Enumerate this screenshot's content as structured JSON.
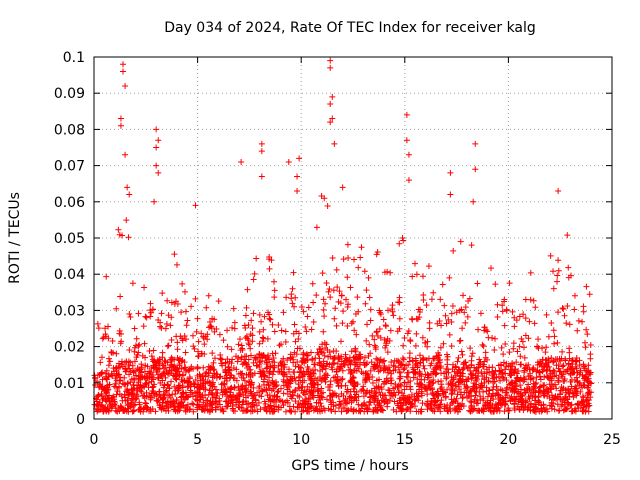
{
  "chart_data": {
    "type": "scatter",
    "title": "Day 034 of 2024, Rate Of TEC Index for receiver kalg",
    "xlabel": "GPS time / hours",
    "ylabel": "ROTI / TECUs",
    "xlim": [
      0,
      25
    ],
    "ylim": [
      0,
      0.1
    ],
    "xticks": [
      0,
      5,
      10,
      15,
      20,
      25
    ],
    "xtick_labels": [
      "0",
      "5",
      "10",
      "15",
      "20",
      "25"
    ],
    "yticks": [
      0,
      0.01,
      0.02,
      0.03,
      0.04,
      0.05,
      0.06,
      0.07,
      0.08,
      0.09,
      0.1
    ],
    "ytick_labels": [
      "0",
      "0.01",
      "0.02",
      "0.03",
      "0.04",
      "0.05",
      "0.06",
      "0.07",
      "0.08",
      "0.09",
      "0.1"
    ],
    "grid": true,
    "marker": "plus",
    "color": "#ff0000",
    "x_coverage_hours": [
      0,
      24
    ],
    "envelope": {
      "hours": [
        0,
        1,
        1.5,
        2,
        3,
        4,
        5,
        6,
        7,
        8,
        9,
        10,
        11,
        11.5,
        12,
        13,
        14,
        15,
        16,
        17,
        18,
        19,
        20,
        21,
        22,
        23,
        24
      ],
      "max_roti": [
        0.03,
        0.045,
        0.062,
        0.035,
        0.05,
        0.05,
        0.035,
        0.038,
        0.04,
        0.045,
        0.045,
        0.055,
        0.06,
        0.065,
        0.055,
        0.05,
        0.045,
        0.05,
        0.045,
        0.06,
        0.05,
        0.04,
        0.05,
        0.04,
        0.045,
        0.05,
        0.04
      ],
      "typical_roti": [
        0.008,
        0.01,
        0.012,
        0.01,
        0.012,
        0.012,
        0.01,
        0.011,
        0.012,
        0.013,
        0.012,
        0.013,
        0.014,
        0.014,
        0.013,
        0.012,
        0.012,
        0.012,
        0.012,
        0.013,
        0.012,
        0.011,
        0.011,
        0.011,
        0.012,
        0.012,
        0.01
      ]
    },
    "outliers": [
      {
        "x": 1.4,
        "y": 0.098
      },
      {
        "x": 1.4,
        "y": 0.096
      },
      {
        "x": 1.5,
        "y": 0.092
      },
      {
        "x": 1.3,
        "y": 0.083
      },
      {
        "x": 1.3,
        "y": 0.081
      },
      {
        "x": 1.5,
        "y": 0.073
      },
      {
        "x": 1.6,
        "y": 0.064
      },
      {
        "x": 1.7,
        "y": 0.062
      },
      {
        "x": 3.0,
        "y": 0.08
      },
      {
        "x": 3.1,
        "y": 0.077
      },
      {
        "x": 3.0,
        "y": 0.075
      },
      {
        "x": 3.0,
        "y": 0.07
      },
      {
        "x": 3.1,
        "y": 0.068
      },
      {
        "x": 2.9,
        "y": 0.06
      },
      {
        "x": 4.9,
        "y": 0.059
      },
      {
        "x": 7.1,
        "y": 0.071
      },
      {
        "x": 8.1,
        "y": 0.076
      },
      {
        "x": 8.1,
        "y": 0.074
      },
      {
        "x": 8.1,
        "y": 0.067
      },
      {
        "x": 9.4,
        "y": 0.071
      },
      {
        "x": 9.9,
        "y": 0.072
      },
      {
        "x": 9.8,
        "y": 0.067
      },
      {
        "x": 9.8,
        "y": 0.063
      },
      {
        "x": 11.4,
        "y": 0.099
      },
      {
        "x": 11.4,
        "y": 0.097
      },
      {
        "x": 11.5,
        "y": 0.089
      },
      {
        "x": 11.4,
        "y": 0.087
      },
      {
        "x": 11.5,
        "y": 0.083
      },
      {
        "x": 11.4,
        "y": 0.082
      },
      {
        "x": 11.6,
        "y": 0.076
      },
      {
        "x": 12.0,
        "y": 0.064
      },
      {
        "x": 15.1,
        "y": 0.084
      },
      {
        "x": 15.1,
        "y": 0.077
      },
      {
        "x": 15.2,
        "y": 0.073
      },
      {
        "x": 15.2,
        "y": 0.066
      },
      {
        "x": 17.2,
        "y": 0.068
      },
      {
        "x": 17.2,
        "y": 0.062
      },
      {
        "x": 18.4,
        "y": 0.076
      },
      {
        "x": 18.4,
        "y": 0.069
      },
      {
        "x": 18.3,
        "y": 0.06
      },
      {
        "x": 22.4,
        "y": 0.063
      }
    ]
  }
}
